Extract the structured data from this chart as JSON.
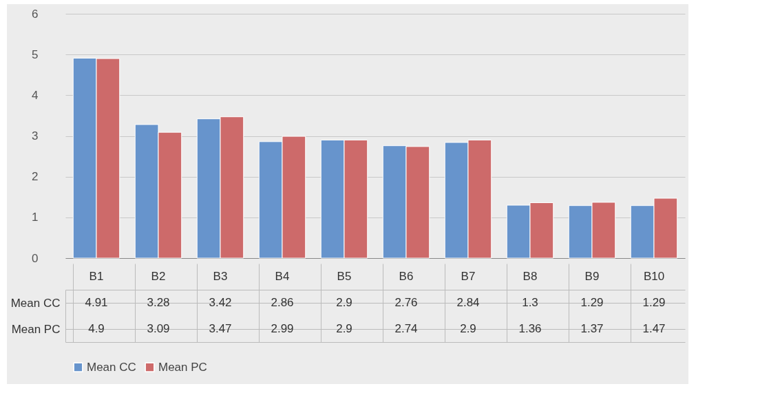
{
  "chart_data": {
    "type": "bar",
    "categories": [
      "B1",
      "B2",
      "B3",
      "B4",
      "B5",
      "B6",
      "B7",
      "B8",
      "B9",
      "B10"
    ],
    "series": [
      {
        "name": "Mean CC",
        "color": "#6794cc",
        "values": [
          4.91,
          3.28,
          3.42,
          2.86,
          2.9,
          2.76,
          2.84,
          1.3,
          1.29,
          1.29
        ]
      },
      {
        "name": "Mean PC",
        "color": "#cd6a6a",
        "values": [
          4.9,
          3.09,
          3.47,
          2.99,
          2.9,
          2.74,
          2.9,
          1.36,
          1.37,
          1.47
        ]
      }
    ],
    "ylim": [
      0,
      6
    ],
    "yticks": [
      0,
      1,
      2,
      3,
      4,
      5,
      6
    ],
    "grid": "y",
    "legend": "bottom",
    "data_labels": true
  }
}
